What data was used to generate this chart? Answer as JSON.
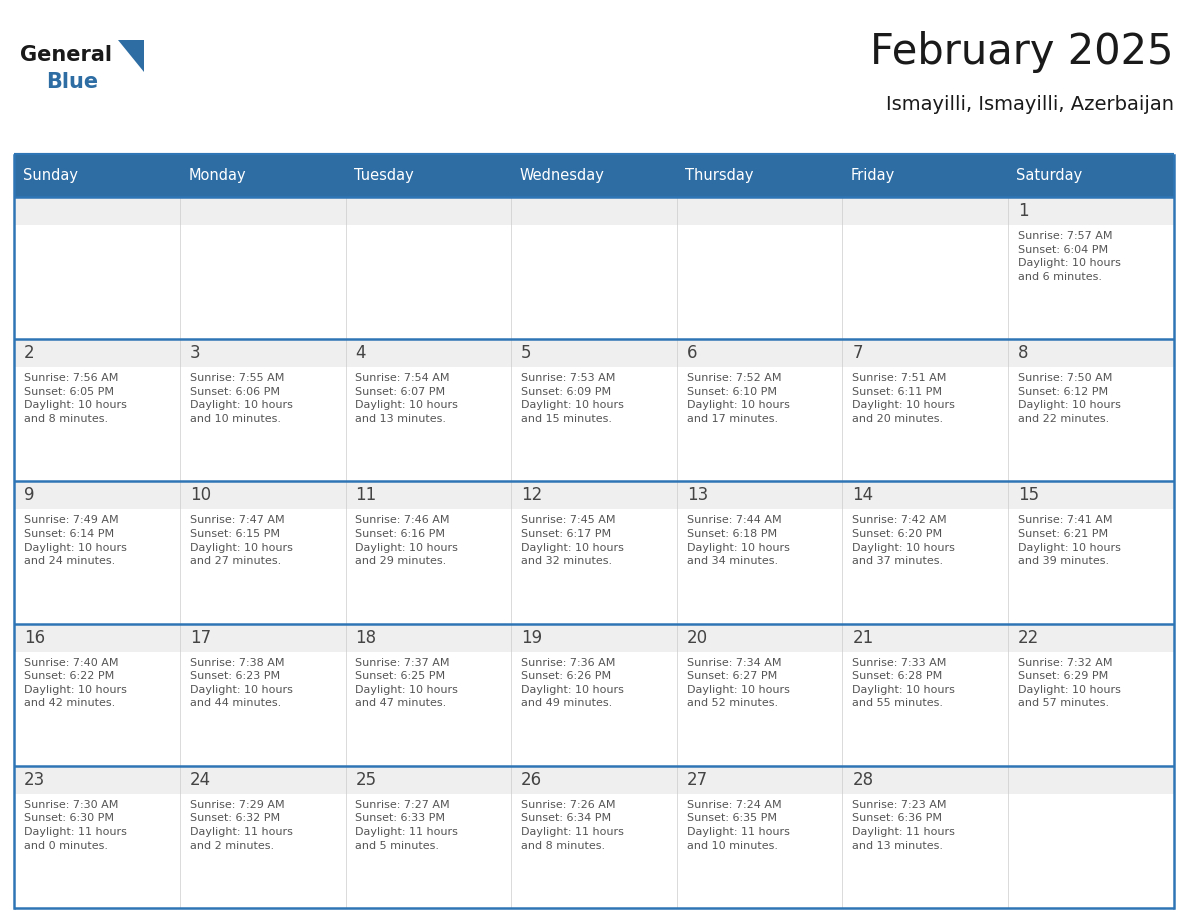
{
  "title": "February 2025",
  "subtitle": "Ismayilli, Ismayilli, Azerbaijan",
  "header_bg": "#2E6DA4",
  "header_text_color": "#FFFFFF",
  "cell_top_bg": "#EFEFEF",
  "cell_body_bg": "#FFFFFF",
  "day_number_color": "#444444",
  "text_color": "#555555",
  "border_color": "#2E75B6",
  "days_of_week": [
    "Sunday",
    "Monday",
    "Tuesday",
    "Wednesday",
    "Thursday",
    "Friday",
    "Saturday"
  ],
  "weeks": [
    [
      {
        "day": "",
        "info": ""
      },
      {
        "day": "",
        "info": ""
      },
      {
        "day": "",
        "info": ""
      },
      {
        "day": "",
        "info": ""
      },
      {
        "day": "",
        "info": ""
      },
      {
        "day": "",
        "info": ""
      },
      {
        "day": "1",
        "info": "Sunrise: 7:57 AM\nSunset: 6:04 PM\nDaylight: 10 hours\nand 6 minutes."
      }
    ],
    [
      {
        "day": "2",
        "info": "Sunrise: 7:56 AM\nSunset: 6:05 PM\nDaylight: 10 hours\nand 8 minutes."
      },
      {
        "day": "3",
        "info": "Sunrise: 7:55 AM\nSunset: 6:06 PM\nDaylight: 10 hours\nand 10 minutes."
      },
      {
        "day": "4",
        "info": "Sunrise: 7:54 AM\nSunset: 6:07 PM\nDaylight: 10 hours\nand 13 minutes."
      },
      {
        "day": "5",
        "info": "Sunrise: 7:53 AM\nSunset: 6:09 PM\nDaylight: 10 hours\nand 15 minutes."
      },
      {
        "day": "6",
        "info": "Sunrise: 7:52 AM\nSunset: 6:10 PM\nDaylight: 10 hours\nand 17 minutes."
      },
      {
        "day": "7",
        "info": "Sunrise: 7:51 AM\nSunset: 6:11 PM\nDaylight: 10 hours\nand 20 minutes."
      },
      {
        "day": "8",
        "info": "Sunrise: 7:50 AM\nSunset: 6:12 PM\nDaylight: 10 hours\nand 22 minutes."
      }
    ],
    [
      {
        "day": "9",
        "info": "Sunrise: 7:49 AM\nSunset: 6:14 PM\nDaylight: 10 hours\nand 24 minutes."
      },
      {
        "day": "10",
        "info": "Sunrise: 7:47 AM\nSunset: 6:15 PM\nDaylight: 10 hours\nand 27 minutes."
      },
      {
        "day": "11",
        "info": "Sunrise: 7:46 AM\nSunset: 6:16 PM\nDaylight: 10 hours\nand 29 minutes."
      },
      {
        "day": "12",
        "info": "Sunrise: 7:45 AM\nSunset: 6:17 PM\nDaylight: 10 hours\nand 32 minutes."
      },
      {
        "day": "13",
        "info": "Sunrise: 7:44 AM\nSunset: 6:18 PM\nDaylight: 10 hours\nand 34 minutes."
      },
      {
        "day": "14",
        "info": "Sunrise: 7:42 AM\nSunset: 6:20 PM\nDaylight: 10 hours\nand 37 minutes."
      },
      {
        "day": "15",
        "info": "Sunrise: 7:41 AM\nSunset: 6:21 PM\nDaylight: 10 hours\nand 39 minutes."
      }
    ],
    [
      {
        "day": "16",
        "info": "Sunrise: 7:40 AM\nSunset: 6:22 PM\nDaylight: 10 hours\nand 42 minutes."
      },
      {
        "day": "17",
        "info": "Sunrise: 7:38 AM\nSunset: 6:23 PM\nDaylight: 10 hours\nand 44 minutes."
      },
      {
        "day": "18",
        "info": "Sunrise: 7:37 AM\nSunset: 6:25 PM\nDaylight: 10 hours\nand 47 minutes."
      },
      {
        "day": "19",
        "info": "Sunrise: 7:36 AM\nSunset: 6:26 PM\nDaylight: 10 hours\nand 49 minutes."
      },
      {
        "day": "20",
        "info": "Sunrise: 7:34 AM\nSunset: 6:27 PM\nDaylight: 10 hours\nand 52 minutes."
      },
      {
        "day": "21",
        "info": "Sunrise: 7:33 AM\nSunset: 6:28 PM\nDaylight: 10 hours\nand 55 minutes."
      },
      {
        "day": "22",
        "info": "Sunrise: 7:32 AM\nSunset: 6:29 PM\nDaylight: 10 hours\nand 57 minutes."
      }
    ],
    [
      {
        "day": "23",
        "info": "Sunrise: 7:30 AM\nSunset: 6:30 PM\nDaylight: 11 hours\nand 0 minutes."
      },
      {
        "day": "24",
        "info": "Sunrise: 7:29 AM\nSunset: 6:32 PM\nDaylight: 11 hours\nand 2 minutes."
      },
      {
        "day": "25",
        "info": "Sunrise: 7:27 AM\nSunset: 6:33 PM\nDaylight: 11 hours\nand 5 minutes."
      },
      {
        "day": "26",
        "info": "Sunrise: 7:26 AM\nSunset: 6:34 PM\nDaylight: 11 hours\nand 8 minutes."
      },
      {
        "day": "27",
        "info": "Sunrise: 7:24 AM\nSunset: 6:35 PM\nDaylight: 11 hours\nand 10 minutes."
      },
      {
        "day": "28",
        "info": "Sunrise: 7:23 AM\nSunset: 6:36 PM\nDaylight: 11 hours\nand 13 minutes."
      },
      {
        "day": "",
        "info": ""
      }
    ]
  ],
  "logo_text_general": "General",
  "logo_text_blue": "Blue",
  "generalblue_color": "#1a1a1a",
  "blue_color": "#2E6DA4",
  "fig_width": 11.88,
  "fig_height": 9.18,
  "dpi": 100
}
